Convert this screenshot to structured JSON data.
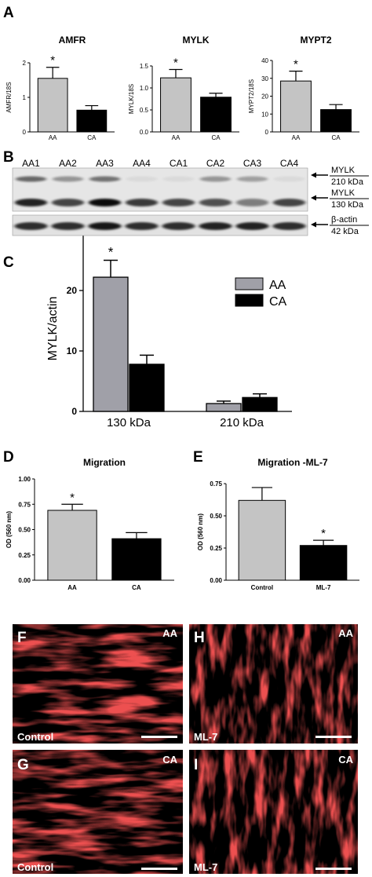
{
  "panels": {
    "A": "A",
    "B": "B",
    "C": "C",
    "D": "D",
    "E": "E",
    "F": "F",
    "G": "G",
    "H": "H",
    "I": "I"
  },
  "colors": {
    "gray_bar": "#c4c4c4",
    "black_bar": "#000000",
    "c_gray_bar": "#a0a0a8",
    "micrograph_red": "#d81a1a"
  },
  "chart_data": [
    {
      "id": "A1",
      "type": "bar",
      "title": "AMFR",
      "ylabel": "AMFR/18S",
      "categories": [
        "AA",
        "CA"
      ],
      "values": [
        1.55,
        0.63
      ],
      "errors": [
        0.32,
        0.13
      ],
      "ylim": [
        0,
        2
      ],
      "yticks": [
        "0",
        "1",
        "2"
      ],
      "significance": [
        "*",
        ""
      ]
    },
    {
      "id": "A2",
      "type": "bar",
      "title": "MYLK",
      "ylabel": "MYLK/18S",
      "categories": [
        "AA",
        "CA"
      ],
      "values": [
        1.23,
        0.79
      ],
      "errors": [
        0.19,
        0.09
      ],
      "ylim": [
        0,
        1.5
      ],
      "yticks": [
        "0.0",
        "0.5",
        "1.0",
        "1.5"
      ],
      "significance": [
        "*",
        ""
      ]
    },
    {
      "id": "A3",
      "type": "bar",
      "title": "MYPT2",
      "ylabel": "MYPT2/18S",
      "categories": [
        "AA",
        "CA"
      ],
      "values": [
        28.5,
        12.5
      ],
      "errors": [
        5.5,
        2.8
      ],
      "ylim": [
        0,
        40
      ],
      "yticks": [
        "0",
        "10",
        "20",
        "30",
        "40"
      ],
      "significance": [
        "*",
        ""
      ]
    },
    {
      "id": "C",
      "type": "bar",
      "ylabel": "MYLK/actin",
      "categories": [
        "130 kDa",
        "210 kDa"
      ],
      "series": [
        {
          "name": "AA",
          "values": [
            22.2,
            1.3
          ],
          "errors": [
            2.8,
            0.4
          ]
        },
        {
          "name": "CA",
          "values": [
            7.8,
            2.3
          ],
          "errors": [
            1.5,
            0.6
          ]
        }
      ],
      "ylim": [
        0,
        30
      ],
      "yticks": [
        "0",
        "10",
        "20",
        "30"
      ],
      "significance": [
        "*",
        ""
      ],
      "legend": "top-right"
    },
    {
      "id": "D",
      "type": "bar",
      "title": "Migration",
      "ylabel": "OD (560 nm)",
      "categories": [
        "AA",
        "CA"
      ],
      "values": [
        0.69,
        0.41
      ],
      "errors": [
        0.06,
        0.06
      ],
      "ylim": [
        0,
        1
      ],
      "yticks": [
        "0.00",
        "0.25",
        "0.50",
        "0.75",
        "1.00"
      ],
      "significance": [
        "*",
        ""
      ]
    },
    {
      "id": "E",
      "type": "bar",
      "title": "Migration -ML-7",
      "ylabel": "OD (560 nm)",
      "categories": [
        "Control",
        "ML-7"
      ],
      "values": [
        0.62,
        0.27
      ],
      "errors": [
        0.1,
        0.04
      ],
      "ylim": [
        0,
        0.75
      ],
      "yticks": [
        "0.00",
        "0.25",
        "0.50",
        "0.75"
      ],
      "significance": [
        "",
        "*"
      ]
    }
  ],
  "blot": {
    "lanes": [
      "AA1",
      "AA2",
      "AA3",
      "AA4",
      "CA1",
      "CA2",
      "CA3",
      "CA4"
    ],
    "labels": [
      {
        "name": "MYLK",
        "size": "210 kDa"
      },
      {
        "name": "MYLK",
        "size": "130 kDa"
      },
      {
        "name": "β-actin",
        "size": "42 kDa"
      }
    ],
    "band_130": [
      0.85,
      0.7,
      0.95,
      0.75,
      0.7,
      0.65,
      0.45,
      0.7
    ],
    "band_210": [
      0.55,
      0.35,
      0.5,
      0.05,
      0.05,
      0.35,
      0.3,
      0.05
    ],
    "band_actin": [
      0.8,
      0.8,
      0.9,
      0.8,
      0.8,
      0.85,
      0.85,
      0.8
    ]
  },
  "micrographs": [
    {
      "panel": "F",
      "group": "AA",
      "treatment": "Control"
    },
    {
      "panel": "H",
      "group": "AA",
      "treatment": "ML-7"
    },
    {
      "panel": "G",
      "group": "CA",
      "treatment": "Control"
    },
    {
      "panel": "I",
      "group": "CA",
      "treatment": "ML-7"
    }
  ]
}
